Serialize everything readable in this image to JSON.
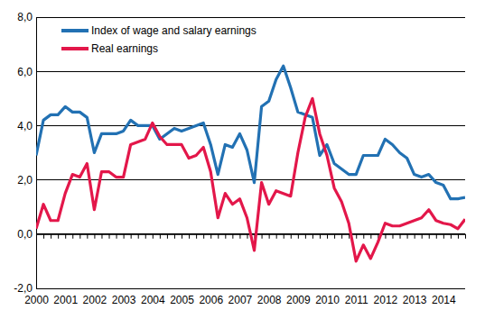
{
  "chart_data": {
    "type": "line",
    "categories": [
      "2000",
      null,
      null,
      null,
      "2001",
      null,
      null,
      null,
      "2002",
      null,
      null,
      null,
      "2003",
      null,
      null,
      null,
      "2004",
      null,
      null,
      null,
      "2005",
      null,
      null,
      null,
      "2006",
      null,
      null,
      null,
      "2007",
      null,
      null,
      null,
      "2008",
      null,
      null,
      null,
      "2009",
      null,
      null,
      null,
      "2010",
      null,
      null,
      null,
      "2011",
      null,
      null,
      null,
      "2012",
      null,
      null,
      null,
      "2013",
      null,
      null,
      null,
      "2014",
      null,
      null,
      null
    ],
    "series": [
      {
        "name": "Index of wage and salary earnings",
        "color": "#2271b3",
        "values": [
          2.9,
          4.2,
          4.4,
          4.4,
          4.7,
          4.5,
          4.5,
          4.3,
          3.0,
          3.7,
          3.7,
          3.7,
          3.8,
          4.2,
          4.0,
          4.0,
          4.0,
          3.5,
          3.7,
          3.9,
          3.8,
          3.9,
          4.0,
          4.1,
          3.3,
          2.2,
          3.3,
          3.2,
          3.7,
          3.1,
          1.9,
          4.7,
          4.9,
          5.7,
          6.2,
          5.4,
          4.5,
          4.4,
          4.3,
          2.9,
          3.3,
          2.6,
          2.4,
          2.2,
          2.2,
          2.9,
          2.9,
          2.9,
          3.5,
          3.3,
          3.0,
          2.8,
          2.2,
          2.1,
          2.2,
          1.9,
          1.8,
          1.3,
          1.3,
          1.35
        ]
      },
      {
        "name": "Real earnings",
        "color": "#e3174a",
        "values": [
          0.2,
          1.1,
          0.5,
          0.5,
          1.5,
          2.2,
          2.1,
          2.6,
          0.9,
          2.3,
          2.3,
          2.1,
          2.1,
          3.3,
          3.4,
          3.5,
          4.1,
          3.6,
          3.3,
          3.3,
          3.3,
          2.8,
          2.9,
          3.2,
          2.3,
          0.6,
          1.5,
          1.1,
          1.3,
          0.6,
          -0.6,
          1.9,
          1.1,
          1.6,
          1.5,
          1.4,
          3.0,
          4.3,
          5.0,
          3.7,
          2.9,
          1.7,
          1.2,
          0.4,
          -1.0,
          -0.4,
          -0.9,
          -0.3,
          0.4,
          0.3,
          0.3,
          0.4,
          0.5,
          0.6,
          0.9,
          0.5,
          0.4,
          0.35,
          0.2,
          0.55
        ]
      }
    ],
    "ylim": [
      -2,
      8
    ],
    "yticks": [
      {
        "value": -2,
        "label": "-2,0"
      },
      {
        "value": 0,
        "label": "0,0"
      },
      {
        "value": 2,
        "label": "2,0"
      },
      {
        "value": 4,
        "label": "4,0"
      },
      {
        "value": 6,
        "label": "6,0"
      },
      {
        "value": 8,
        "label": "8,0"
      }
    ],
    "grid": true,
    "legend": "upper left"
  }
}
